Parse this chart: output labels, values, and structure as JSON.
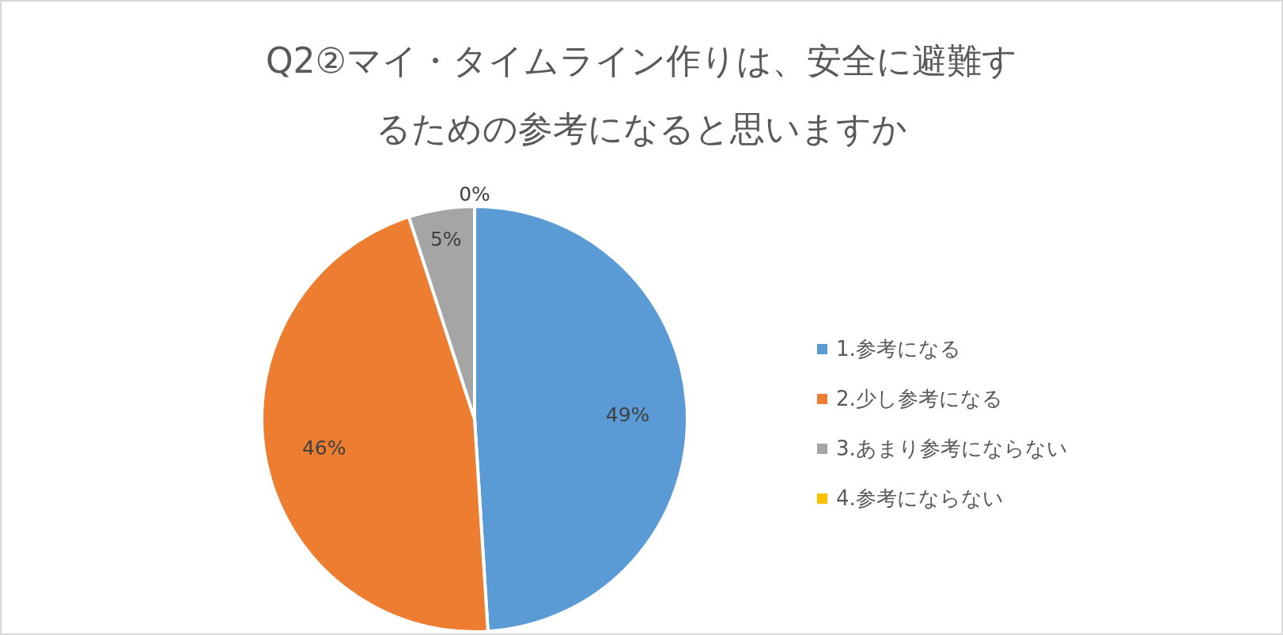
{
  "chart_data": {
    "type": "pie",
    "title": "Q2②マイ・タイムライン作りは、安全に避難するための参考になると思いますか",
    "categories": [
      "1.参考になる",
      "2.少し参考になる",
      "3.あまり参考にならない",
      "4.参考にならない"
    ],
    "values": [
      49,
      46,
      5,
      0
    ],
    "colors": [
      "#5b9bd5",
      "#ed7d31",
      "#a5a5a5",
      "#ffc000"
    ],
    "value_labels": [
      "49%",
      "46%",
      "5%",
      "0%"
    ],
    "legend": "right"
  }
}
